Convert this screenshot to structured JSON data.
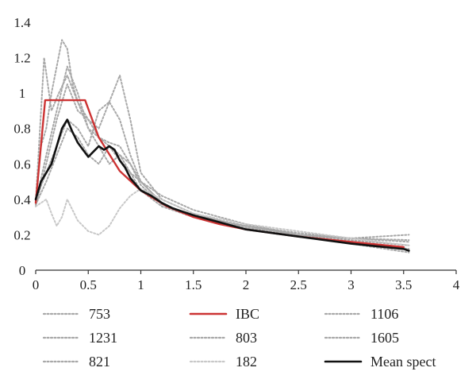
{
  "chart_data": {
    "type": "line",
    "title": "",
    "xlabel": "",
    "ylabel": "",
    "xlim": [
      0,
      4
    ],
    "ylim": [
      0,
      1.4
    ],
    "x_ticks": [
      "0",
      "0.5",
      "1",
      "1.5",
      "2",
      "2.5",
      "3",
      "3.5",
      "4"
    ],
    "y_ticks": [
      "0",
      "0.2",
      "0.4",
      "0.6",
      "0.8",
      "1",
      "1.2",
      "1.4"
    ],
    "grid": false,
    "legend_position": "bottom",
    "series": [
      {
        "name": "753",
        "color": "#a8a8a8",
        "style": "dotted",
        "x": [
          0,
          0.05,
          0.1,
          0.15,
          0.2,
          0.25,
          0.3,
          0.35,
          0.4,
          0.5,
          0.6,
          0.7,
          0.8,
          0.9,
          1.0,
          1.2,
          1.5,
          2.0,
          2.5,
          3.0,
          3.55
        ],
        "y": [
          0.38,
          0.7,
          0.8,
          1.0,
          1.15,
          1.3,
          1.25,
          1.05,
          0.95,
          0.85,
          0.75,
          0.7,
          0.62,
          0.55,
          0.5,
          0.42,
          0.34,
          0.26,
          0.2,
          0.16,
          0.12
        ]
      },
      {
        "name": "IBC",
        "color": "#cc3333",
        "style": "solid",
        "x": [
          0,
          0.09,
          0.47,
          0.6,
          0.8,
          1.0,
          1.25,
          1.5,
          1.75,
          2.0,
          2.5,
          3.0,
          3.5
        ],
        "y": [
          0.38,
          0.96,
          0.96,
          0.75,
          0.56,
          0.45,
          0.36,
          0.3,
          0.26,
          0.23,
          0.19,
          0.16,
          0.13
        ]
      },
      {
        "name": "1106",
        "color": "#a8a8a8",
        "style": "dotted",
        "x": [
          0,
          0.1,
          0.2,
          0.3,
          0.4,
          0.5,
          0.6,
          0.7,
          0.8,
          0.9,
          1.0,
          1.2,
          1.5,
          2.0,
          2.5,
          3.0,
          3.55
        ],
        "y": [
          0.36,
          0.6,
          0.85,
          1.05,
          0.9,
          0.85,
          0.8,
          0.95,
          1.1,
          0.85,
          0.55,
          0.4,
          0.32,
          0.24,
          0.2,
          0.17,
          0.14
        ]
      },
      {
        "name": "1231",
        "color": "#a8a8a8",
        "style": "dotted",
        "x": [
          0,
          0.08,
          0.15,
          0.22,
          0.3,
          0.4,
          0.5,
          0.6,
          0.7,
          0.8,
          0.9,
          1.0,
          1.2,
          1.5,
          2.0,
          2.5,
          3.0,
          3.55
        ],
        "y": [
          0.38,
          1.2,
          0.9,
          1.0,
          1.1,
          0.95,
          0.8,
          0.75,
          0.72,
          0.7,
          0.6,
          0.5,
          0.38,
          0.3,
          0.24,
          0.2,
          0.18,
          0.2
        ]
      },
      {
        "name": "803",
        "color": "#a8a8a8",
        "style": "dotted",
        "x": [
          0,
          0.1,
          0.2,
          0.3,
          0.4,
          0.5,
          0.6,
          0.7,
          0.8,
          0.9,
          1.0,
          1.2,
          1.5,
          2.0,
          2.5,
          3.0,
          3.55
        ],
        "y": [
          0.4,
          0.55,
          0.7,
          0.85,
          0.8,
          0.7,
          0.9,
          0.95,
          0.85,
          0.65,
          0.5,
          0.38,
          0.3,
          0.23,
          0.19,
          0.15,
          0.1
        ]
      },
      {
        "name": "1605",
        "color": "#a8a8a8",
        "style": "dotted",
        "x": [
          0,
          0.1,
          0.2,
          0.3,
          0.4,
          0.5,
          0.6,
          0.7,
          0.8,
          0.9,
          1.0,
          1.2,
          1.5,
          2.0,
          2.5,
          3.0,
          3.55
        ],
        "y": [
          0.38,
          0.65,
          0.9,
          1.15,
          1.0,
          0.8,
          0.7,
          0.6,
          0.65,
          0.6,
          0.48,
          0.37,
          0.31,
          0.25,
          0.2,
          0.18,
          0.16
        ]
      },
      {
        "name": "821",
        "color": "#a8a8a8",
        "style": "dotted",
        "x": [
          0,
          0.1,
          0.2,
          0.3,
          0.4,
          0.5,
          0.6,
          0.7,
          0.8,
          0.9,
          1.0,
          1.2,
          1.5,
          2.0,
          2.5,
          3.0,
          3.55
        ],
        "y": [
          0.37,
          0.5,
          0.65,
          0.8,
          0.75,
          0.65,
          0.6,
          0.7,
          0.65,
          0.55,
          0.45,
          0.36,
          0.3,
          0.25,
          0.21,
          0.18,
          0.17
        ]
      },
      {
        "name": "182",
        "color": "#c8c8c8",
        "style": "dotted",
        "x": [
          0,
          0.1,
          0.15,
          0.2,
          0.25,
          0.3,
          0.4,
          0.5,
          0.6,
          0.7,
          0.8,
          0.9,
          1.0,
          1.2,
          1.5,
          2.0,
          2.5,
          3.0,
          3.55
        ],
        "y": [
          0.36,
          0.4,
          0.32,
          0.25,
          0.3,
          0.4,
          0.28,
          0.22,
          0.2,
          0.25,
          0.35,
          0.42,
          0.46,
          0.4,
          0.32,
          0.26,
          0.22,
          0.18,
          0.14
        ]
      },
      {
        "name": "Mean spect",
        "color": "#111111",
        "style": "solid",
        "x": [
          0,
          0.05,
          0.1,
          0.15,
          0.2,
          0.25,
          0.3,
          0.35,
          0.4,
          0.45,
          0.5,
          0.55,
          0.6,
          0.65,
          0.7,
          0.75,
          0.8,
          0.85,
          0.9,
          1.0,
          1.1,
          1.2,
          1.3,
          1.5,
          1.75,
          2.0,
          2.5,
          3.0,
          3.5,
          3.55
        ],
        "y": [
          0.4,
          0.5,
          0.55,
          0.6,
          0.7,
          0.8,
          0.85,
          0.78,
          0.72,
          0.68,
          0.64,
          0.67,
          0.7,
          0.68,
          0.7,
          0.68,
          0.62,
          0.58,
          0.52,
          0.45,
          0.42,
          0.38,
          0.35,
          0.31,
          0.27,
          0.23,
          0.19,
          0.15,
          0.12,
          0.11
        ]
      }
    ],
    "legend_order": [
      "753",
      "IBC",
      "1106",
      "1231",
      "803",
      "1605",
      "821",
      "182",
      "Mean spect"
    ]
  }
}
